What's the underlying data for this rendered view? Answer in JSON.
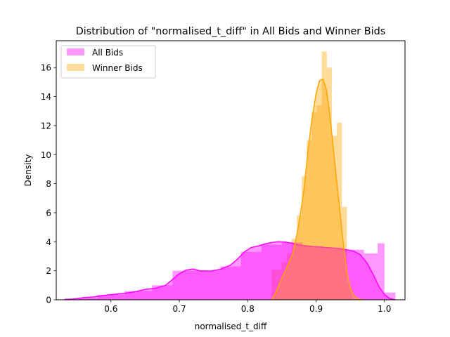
{
  "chart_data": {
    "type": "area",
    "title": "Distribution of \"normalised_t_diff\" in All Bids and Winner Bids",
    "xlabel": "normalised_t_diff",
    "ylabel": "Density",
    "xlim": [
      0.52,
      1.03
    ],
    "ylim": [
      0,
      17.85
    ],
    "xticks": [
      0.6,
      0.7,
      0.8,
      0.9,
      1.0
    ],
    "xtick_labels": [
      "0.6",
      "0.7",
      "0.8",
      "0.9",
      "1.0"
    ],
    "yticks": [
      0,
      2,
      4,
      6,
      8,
      10,
      12,
      14,
      16
    ],
    "ytick_labels": [
      "0",
      "2",
      "4",
      "6",
      "8",
      "10",
      "12",
      "14",
      "16"
    ],
    "grid": false,
    "legend_position": "top-left",
    "legend": [
      "All Bids",
      "Winner Bids"
    ],
    "series": [
      {
        "name": "All Bids",
        "kind": "kde",
        "line_color": "#ff00ff",
        "fill_color": "#ff00ff",
        "fill_opacity": 0.4,
        "x": [
          0.532,
          0.545,
          0.56,
          0.575,
          0.59,
          0.605,
          0.62,
          0.635,
          0.65,
          0.665,
          0.68,
          0.69,
          0.7,
          0.71,
          0.72,
          0.73,
          0.745,
          0.76,
          0.775,
          0.785,
          0.795,
          0.805,
          0.815,
          0.825,
          0.835,
          0.845,
          0.855,
          0.865,
          0.875,
          0.885,
          0.9,
          0.915,
          0.93,
          0.945,
          0.955,
          0.965,
          0.975,
          0.985,
          0.992,
          1.0,
          1.008,
          1.016
        ],
        "y": [
          0.0,
          0.05,
          0.15,
          0.2,
          0.3,
          0.38,
          0.45,
          0.55,
          0.72,
          0.8,
          1.0,
          1.4,
          1.8,
          2.05,
          2.12,
          2.0,
          1.98,
          2.1,
          2.4,
          2.8,
          3.3,
          3.6,
          3.7,
          3.85,
          3.95,
          4.0,
          3.98,
          3.9,
          3.78,
          3.72,
          3.65,
          3.6,
          3.55,
          3.45,
          3.35,
          3.1,
          2.5,
          1.6,
          0.9,
          0.35,
          0.08,
          0.0
        ]
      },
      {
        "name": "Winner Bids",
        "kind": "kde",
        "line_color": "#ffa500",
        "fill_color": "#ffa500",
        "fill_opacity": 0.4,
        "x": [
          0.835,
          0.842,
          0.85,
          0.858,
          0.866,
          0.874,
          0.882,
          0.888,
          0.894,
          0.9,
          0.905,
          0.91,
          0.915,
          0.92,
          0.925,
          0.93,
          0.935,
          0.94,
          0.945,
          0.95,
          0.955,
          0.96,
          0.965,
          0.97
        ],
        "y": [
          0.0,
          0.6,
          1.5,
          2.3,
          3.2,
          5.0,
          7.5,
          10.2,
          12.5,
          14.2,
          15.1,
          15.2,
          14.5,
          12.8,
          10.5,
          8.2,
          6.0,
          3.8,
          1.9,
          0.8,
          0.3,
          0.1,
          0.02,
          0.0
        ]
      }
    ],
    "histograms": [
      {
        "name": "Winner Bids",
        "color": "#ffa500",
        "opacity": 0.4,
        "edges": [
          0.835,
          0.8387,
          0.8423,
          0.846,
          0.8497,
          0.8533,
          0.857,
          0.8607,
          0.8643,
          0.868,
          0.8717,
          0.8753,
          0.879,
          0.8827,
          0.8863,
          0.89,
          0.8937,
          0.8973,
          0.901,
          0.9047,
          0.9083,
          0.912,
          0.9157,
          0.9193,
          0.923,
          0.9267,
          0.9303,
          0.934,
          0.9377,
          0.9413,
          0.945,
          0.9487,
          0.9523
        ],
        "heights": [
          2.1,
          2.1,
          2.1,
          2.1,
          2.6,
          2.6,
          3.2,
          3.2,
          4.2,
          4.2,
          5.8,
          5.8,
          8.5,
          8.5,
          11.0,
          11.0,
          12.9,
          12.9,
          13.4,
          13.4,
          17.1,
          17.1,
          16.0,
          16.0,
          11.3,
          11.3,
          12.2,
          12.2,
          6.4,
          6.4,
          1.2,
          0.6
        ]
      },
      {
        "name": "All Bids",
        "color": "#ff00ff",
        "opacity": 0.4,
        "edges": [
          0.532,
          0.58,
          0.62,
          0.66,
          0.69,
          0.72,
          0.76,
          0.79,
          0.82,
          0.85,
          0.88,
          0.91,
          0.94,
          0.97,
          0.99,
          1.0,
          1.016
        ],
        "heights": [
          0.1,
          0.35,
          0.6,
          1.0,
          2.0,
          2.0,
          2.3,
          3.3,
          3.8,
          3.95,
          3.7,
          3.6,
          3.45,
          3.2,
          3.9,
          0.5
        ]
      }
    ]
  }
}
